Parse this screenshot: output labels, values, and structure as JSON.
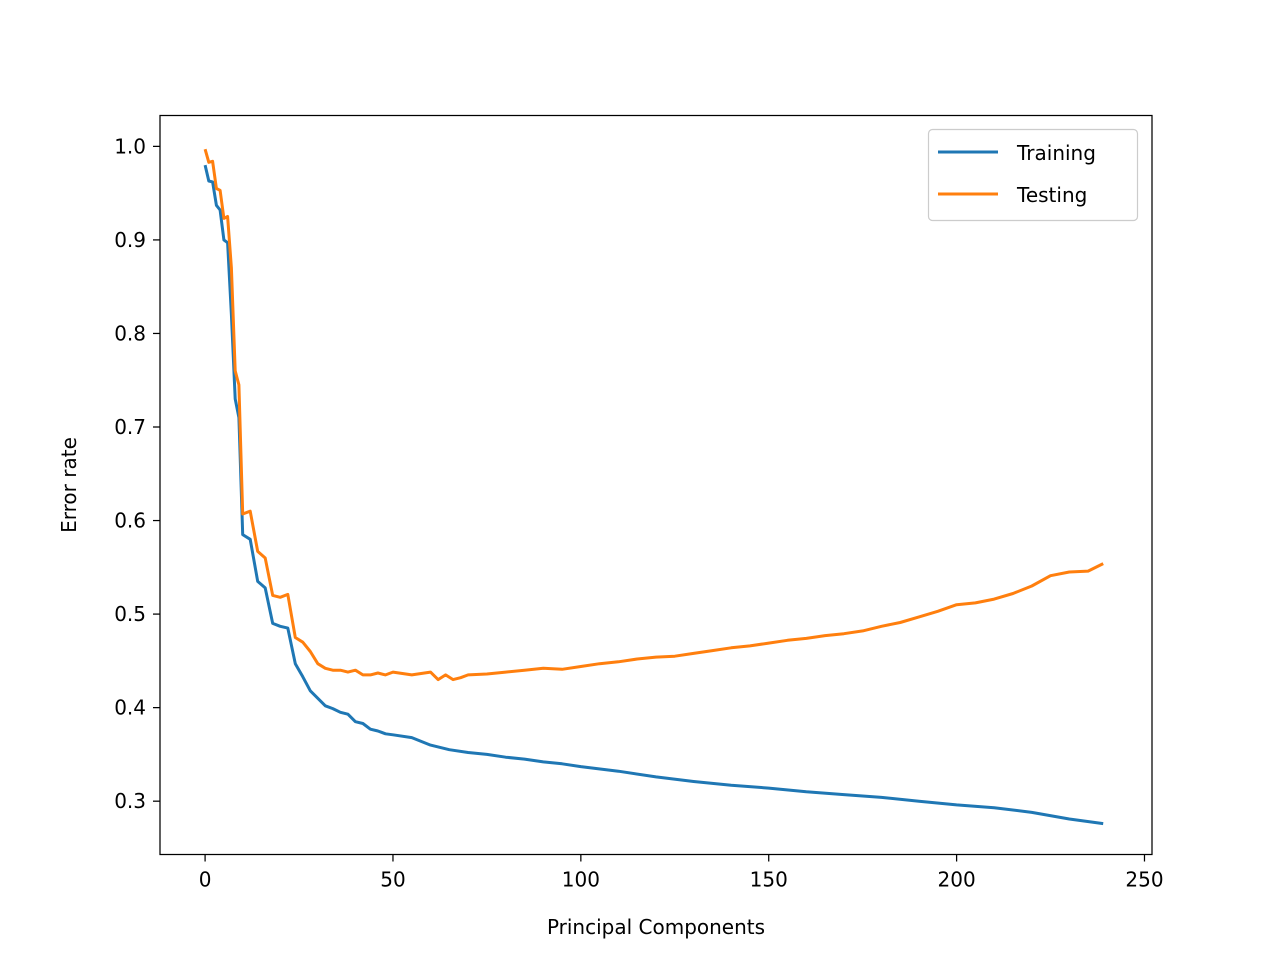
{
  "chart_data": {
    "type": "line",
    "title": "",
    "xlabel": "Principal Components",
    "ylabel": "Error rate",
    "xlim": [
      -12,
      252
    ],
    "ylim": [
      0.243,
      1.033
    ],
    "xticks": [
      0,
      50,
      100,
      150,
      200,
      250
    ],
    "xtick_labels": [
      "0",
      "50",
      "100",
      "150",
      "200",
      "250"
    ],
    "yticks": [
      0.3,
      0.4,
      0.5,
      0.6,
      0.7,
      0.8,
      0.9,
      1.0
    ],
    "ytick_labels": [
      "0.3",
      "0.4",
      "0.5",
      "0.6",
      "0.7",
      "0.8",
      "0.9",
      "1.0"
    ],
    "grid": false,
    "legend_position": "top-right",
    "series": [
      {
        "name": "Training",
        "color": "#1f77b4",
        "x": [
          0,
          1,
          2,
          3,
          4,
          5,
          6,
          7,
          8,
          9,
          10,
          12,
          14,
          16,
          18,
          20,
          22,
          24,
          26,
          28,
          30,
          32,
          34,
          36,
          38,
          40,
          42,
          44,
          46,
          48,
          50,
          55,
          60,
          65,
          70,
          75,
          80,
          85,
          90,
          95,
          100,
          110,
          120,
          130,
          140,
          150,
          160,
          170,
          180,
          190,
          200,
          210,
          220,
          230,
          239
        ],
        "values": [
          0.98,
          0.963,
          0.962,
          0.937,
          0.932,
          0.9,
          0.897,
          0.82,
          0.73,
          0.71,
          0.585,
          0.58,
          0.535,
          0.528,
          0.49,
          0.487,
          0.485,
          0.447,
          0.433,
          0.418,
          0.41,
          0.402,
          0.399,
          0.395,
          0.393,
          0.385,
          0.383,
          0.377,
          0.375,
          0.372,
          0.371,
          0.368,
          0.36,
          0.355,
          0.352,
          0.35,
          0.347,
          0.345,
          0.342,
          0.34,
          0.337,
          0.332,
          0.326,
          0.321,
          0.317,
          0.314,
          0.31,
          0.307,
          0.304,
          0.3,
          0.296,
          0.293,
          0.288,
          0.281,
          0.276
        ]
      },
      {
        "name": "Testing",
        "color": "#ff7f0e",
        "x": [
          0,
          1,
          2,
          3,
          4,
          5,
          6,
          7,
          8,
          9,
          10,
          12,
          14,
          16,
          18,
          20,
          22,
          24,
          26,
          28,
          30,
          32,
          34,
          36,
          38,
          40,
          42,
          44,
          46,
          48,
          50,
          55,
          60,
          62,
          64,
          66,
          68,
          70,
          75,
          80,
          85,
          90,
          95,
          100,
          105,
          110,
          115,
          120,
          125,
          130,
          135,
          140,
          145,
          150,
          155,
          160,
          165,
          170,
          175,
          180,
          185,
          190,
          195,
          200,
          205,
          210,
          215,
          220,
          225,
          230,
          235,
          239
        ],
        "values": [
          0.997,
          0.983,
          0.984,
          0.955,
          0.953,
          0.923,
          0.925,
          0.87,
          0.76,
          0.745,
          0.607,
          0.61,
          0.567,
          0.56,
          0.52,
          0.518,
          0.521,
          0.475,
          0.47,
          0.46,
          0.447,
          0.442,
          0.44,
          0.44,
          0.438,
          0.44,
          0.435,
          0.435,
          0.437,
          0.435,
          0.438,
          0.435,
          0.438,
          0.43,
          0.435,
          0.43,
          0.432,
          0.435,
          0.436,
          0.438,
          0.44,
          0.442,
          0.441,
          0.444,
          0.447,
          0.449,
          0.452,
          0.454,
          0.455,
          0.458,
          0.461,
          0.464,
          0.466,
          0.469,
          0.472,
          0.474,
          0.477,
          0.479,
          0.482,
          0.487,
          0.491,
          0.497,
          0.503,
          0.51,
          0.512,
          0.516,
          0.522,
          0.53,
          0.541,
          0.545,
          0.546,
          0.554
        ]
      }
    ]
  }
}
